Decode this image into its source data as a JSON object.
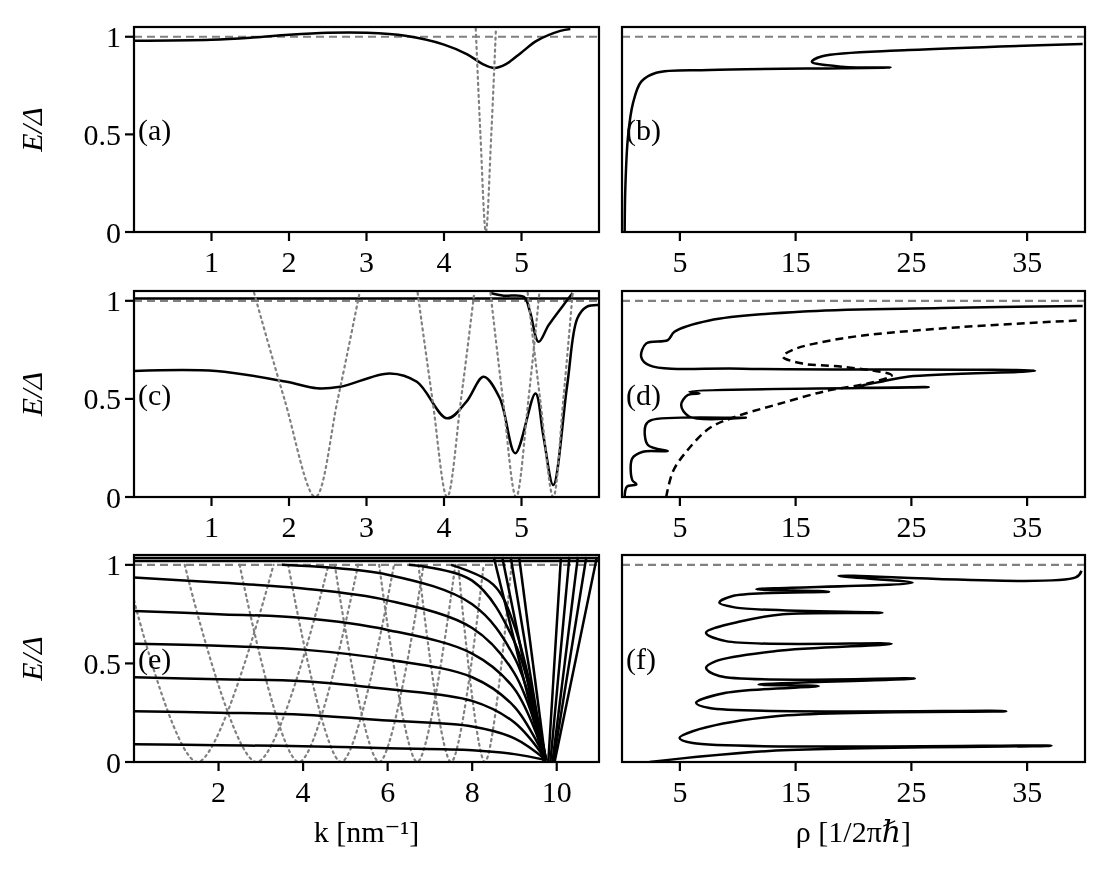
{
  "chart_data": [
    {
      "type": "line",
      "xlim": [
        0,
        6
      ],
      "ylim": [
        0,
        1.05
      ],
      "xticks": [
        1,
        2,
        3,
        4,
        5
      ],
      "yticks": [
        0,
        0.5,
        1
      ],
      "ylabel": "E/Δ",
      "annotations": [
        "(a)"
      ],
      "ref_lines": [
        {
          "axis": "y",
          "value": 1,
          "color": "#808080",
          "line_style": "dashed"
        }
      ],
      "series": [
        {
          "color": "#000000",
          "line_style": "solid",
          "x": [
            0,
            1,
            1.5,
            2,
            2.5,
            3,
            3.5,
            4,
            4.3,
            4.5,
            4.65,
            4.8,
            5,
            5.2,
            5.5,
            5.63
          ],
          "values": [
            0.98,
            0.985,
            0.995,
            1.01,
            1.02,
            1.02,
            1.005,
            0.96,
            0.91,
            0.86,
            0.84,
            0.86,
            0.92,
            0.98,
            1.03,
            1.04
          ]
        },
        {
          "color": "#808080",
          "line_style": "dotted",
          "x": [
            4.41,
            4.47,
            4.54,
            4.61,
            4.67
          ],
          "values": [
            1.04,
            0.5,
            0,
            0.5,
            1.04
          ]
        }
      ]
    },
    {
      "type": "line",
      "xlim": [
        0,
        40
      ],
      "ylim": [
        0,
        1.05
      ],
      "xticks": [
        5,
        15,
        25,
        35
      ],
      "tick_labels": "x",
      "annotations": [
        "(b)"
      ],
      "ref_lines": [
        {
          "axis": "y",
          "value": 1,
          "color": "#808080",
          "line_style": "dashed"
        }
      ],
      "series": [
        {
          "color": "#000000",
          "line_style": "solid",
          "x": [
            0.23,
            0.29,
            0.52,
            0.95,
            1.66,
            2.96,
            7.54,
            19.0,
            23.2,
            19.0,
            16.4,
            17.3,
            24.8,
            39.8
          ],
          "values": [
            0,
            0.23,
            0.49,
            0.66,
            0.77,
            0.816,
            0.83,
            0.839,
            0.842,
            0.847,
            0.872,
            0.9,
            0.932,
            0.963
          ]
        }
      ]
    },
    {
      "type": "line",
      "xlim": [
        0,
        6
      ],
      "ylim": [
        0,
        1.05
      ],
      "xticks": [
        1,
        2,
        3,
        4,
        5
      ],
      "yticks": [
        0,
        0.5,
        1
      ],
      "ylabel": "E/Δ",
      "annotations": [
        "(c)"
      ],
      "ref_lines": [
        {
          "axis": "y",
          "value": 1,
          "color": "#808080",
          "line_style": "dashed"
        }
      ],
      "series": [
        {
          "color": "#000000",
          "line_style": "solid",
          "x": [
            0,
            1.06,
            1.97,
            2.36,
            2.66,
            3.3,
            3.65,
            4.04,
            4.29,
            4.51,
            4.72,
            4.92,
            5.18,
            5.28,
            5.41,
            5.59,
            5.72,
            5.84,
            6.0
          ],
          "values": [
            0.642,
            0.642,
            0.587,
            0.554,
            0.562,
            0.63,
            0.587,
            0.401,
            0.486,
            0.613,
            0.503,
            0.223,
            0.528,
            0.316,
            0.061,
            0.571,
            0.91,
            0.969,
            0.978
          ]
        },
        {
          "color": "#000000",
          "line_style": "solid",
          "x": [
            4.6,
            4.77,
            5.03,
            5.11,
            5.22,
            5.35,
            5.54,
            5.66
          ],
          "values": [
            1.04,
            1.026,
            1.02,
            0.944,
            0.791,
            0.876,
            0.978,
            1.04
          ]
        },
        {
          "color": "#000000",
          "line_style": "solid",
          "x": [
            0,
            6
          ],
          "values": [
            1.012,
            1.012
          ]
        },
        {
          "color": "#808080",
          "line_style": "dotted",
          "x": [
            1.55,
            1.94,
            2.34,
            2.63,
            2.91
          ],
          "values": [
            1.04,
            0.5,
            0,
            0.5,
            1.04
          ]
        },
        {
          "color": "#808080",
          "line_style": "dotted",
          "x": [
            3.66,
            3.85,
            4.04,
            4.22,
            4.39
          ],
          "values": [
            1.04,
            0.5,
            0,
            0.5,
            1.04
          ]
        },
        {
          "color": "#808080",
          "line_style": "dotted",
          "x": [
            4.6,
            4.76,
            4.93,
            5.09,
            5.23
          ],
          "values": [
            1.04,
            0.5,
            0,
            0.5,
            1.04
          ]
        },
        {
          "color": "#808080",
          "line_style": "dotted",
          "x": [
            5.08,
            5.24,
            5.41,
            5.54,
            5.66
          ],
          "values": [
            1.04,
            0.5,
            0,
            0.5,
            1.04
          ]
        }
      ]
    },
    {
      "type": "line",
      "xlim": [
        0,
        40
      ],
      "ylim": [
        0,
        1.05
      ],
      "xticks": [
        5,
        15,
        25,
        35
      ],
      "tick_labels": "x",
      "annotations": [
        "(d)"
      ],
      "ref_lines": [
        {
          "axis": "y",
          "value": 1,
          "color": "#808080",
          "line_style": "dashed"
        }
      ],
      "series": [
        {
          "color": "#000000",
          "line_style": "solid",
          "x": [
            0.23,
            0.43,
            1.24,
            0.89,
            0.89,
            1.81,
            3.96,
            2.24,
            2.04,
            2.53,
            10.7,
            5.83,
            5.11,
            5.68,
            6.69,
            5.83,
            26.5,
            20.5,
            22.5,
            24.8,
            35.7,
            10.4,
            2.38,
            1.66,
            2.1,
            3.96,
            4.53,
            7.54,
            16.1,
            27.6,
            39.8
          ],
          "values": [
            0,
            0.053,
            0.064,
            0.086,
            0.197,
            0.231,
            0.234,
            0.265,
            0.366,
            0.392,
            0.404,
            0.409,
            0.469,
            0.52,
            0.528,
            0.537,
            0.56,
            0.563,
            0.589,
            0.614,
            0.643,
            0.654,
            0.671,
            0.714,
            0.783,
            0.8,
            0.842,
            0.9,
            0.947,
            0.963,
            0.974
          ]
        },
        {
          "color": "#000000",
          "line_style": "dashed",
          "x": [
            3.82,
            4.4,
            5.54,
            7.54,
            9.84,
            13.3,
            17.6,
            21.3,
            23.3,
            19.0,
            15.6,
            13.9,
            14.7,
            19.0,
            27.6,
            39.7
          ],
          "values": [
            0,
            0.13,
            0.23,
            0.35,
            0.41,
            0.47,
            0.54,
            0.58,
            0.62,
            0.664,
            0.68,
            0.715,
            0.749,
            0.808,
            0.859,
            0.901
          ]
        }
      ]
    },
    {
      "type": "line",
      "xlim": [
        0,
        11
      ],
      "ylim": [
        0,
        1.05
      ],
      "xticks": [
        2,
        4,
        6,
        8,
        10
      ],
      "yticks": [
        0,
        0.5,
        1
      ],
      "ylabel": "E/Δ",
      "xlabel": "k [nm⁻¹]",
      "annotations": [
        "(e)"
      ],
      "ref_lines": [
        {
          "axis": "y",
          "value": 1,
          "color": "#808080",
          "line_style": "dashed"
        }
      ],
      "series": [
        {
          "color": "#808080",
          "line_style": "dotted",
          "x": [
            0,
            1.5,
            3.3
          ],
          "values": [
            0.82,
            0,
            1.0
          ]
        },
        {
          "color": "#808080",
          "line_style": "dotted",
          "x": [
            1.2,
            2.9,
            4.6
          ],
          "values": [
            1.0,
            0,
            1.0
          ]
        },
        {
          "color": "#808080",
          "line_style": "dotted",
          "x": [
            2.5,
            3.9,
            5.3
          ],
          "values": [
            1.0,
            0,
            1.0
          ]
        },
        {
          "color": "#808080",
          "line_style": "dotted",
          "x": [
            3.65,
            4.9,
            6.15
          ],
          "values": [
            1.0,
            0,
            1.0
          ]
        },
        {
          "color": "#808080",
          "line_style": "dotted",
          "x": [
            4.75,
            5.8,
            6.85
          ],
          "values": [
            1.0,
            0,
            1.0
          ]
        },
        {
          "color": "#808080",
          "line_style": "dotted",
          "x": [
            5.8,
            6.7,
            7.6
          ],
          "values": [
            1.0,
            0,
            1.0
          ]
        },
        {
          "color": "#808080",
          "line_style": "dotted",
          "x": [
            6.73,
            7.5,
            8.27
          ],
          "values": [
            1.0,
            0,
            1.0
          ]
        },
        {
          "color": "#808080",
          "line_style": "dotted",
          "x": [
            7.67,
            8.3,
            8.93
          ],
          "values": [
            1.0,
            0,
            1.0
          ]
        },
        {
          "color": "#000000",
          "line_style": "solid",
          "x": [
            0,
            2,
            4,
            6,
            8,
            9,
            9.75
          ],
          "values": [
            0.936,
            0.91,
            0.88,
            0.82,
            0.68,
            0.45,
            0.01
          ]
        },
        {
          "color": "#000000",
          "line_style": "solid",
          "x": [
            0,
            2,
            4,
            6,
            8,
            9,
            9.75
          ],
          "values": [
            0.766,
            0.75,
            0.73,
            0.67,
            0.55,
            0.37,
            0.01
          ]
        },
        {
          "color": "#000000",
          "line_style": "solid",
          "x": [
            0,
            2,
            4,
            6,
            8,
            9,
            9.75
          ],
          "values": [
            0.6,
            0.59,
            0.57,
            0.52,
            0.43,
            0.28,
            0.01
          ]
        },
        {
          "color": "#000000",
          "line_style": "solid",
          "x": [
            0,
            2,
            4,
            6,
            8,
            9,
            9.75
          ],
          "values": [
            0.43,
            0.42,
            0.41,
            0.37,
            0.31,
            0.2,
            0.01
          ]
        },
        {
          "color": "#000000",
          "line_style": "solid",
          "x": [
            0,
            2,
            4,
            6,
            8,
            9,
            9.75
          ],
          "values": [
            0.257,
            0.25,
            0.24,
            0.21,
            0.18,
            0.12,
            0.01
          ]
        },
        {
          "color": "#000000",
          "line_style": "solid",
          "x": [
            0,
            2,
            4,
            6,
            8,
            9,
            9.75
          ],
          "values": [
            0.09,
            0.085,
            0.08,
            0.07,
            0.06,
            0.04,
            0.01
          ]
        },
        {
          "color": "#000000",
          "line_style": "solid",
          "x": [
            3.5,
            6,
            8,
            9,
            9.75
          ],
          "values": [
            1.0,
            0.95,
            0.8,
            0.53,
            0.01
          ]
        },
        {
          "color": "#000000",
          "line_style": "solid",
          "x": [
            6.5,
            8,
            9,
            9.75
          ],
          "values": [
            1.0,
            0.92,
            0.61,
            0.01
          ]
        },
        {
          "color": "#000000",
          "line_style": "solid",
          "x": [
            7.5,
            8.5,
            9,
            9.75
          ],
          "values": [
            1.0,
            0.9,
            0.69,
            0.01
          ]
        },
        {
          "color": "#000000",
          "line_style": "solid",
          "x": [
            8.51,
            9.7
          ],
          "values": [
            1.04,
            0
          ]
        },
        {
          "color": "#000000",
          "line_style": "solid",
          "x": [
            8.71,
            9.7
          ],
          "values": [
            1.04,
            0
          ]
        },
        {
          "color": "#000000",
          "line_style": "solid",
          "x": [
            8.91,
            9.72
          ],
          "values": [
            1.04,
            0
          ]
        },
        {
          "color": "#000000",
          "line_style": "solid",
          "x": [
            9.11,
            9.74
          ],
          "values": [
            1.04,
            0
          ]
        },
        {
          "color": "#000000",
          "line_style": "solid",
          "x": [
            9.8,
            10.1
          ],
          "values": [
            0,
            1.04
          ]
        },
        {
          "color": "#000000",
          "line_style": "solid",
          "x": [
            9.85,
            10.3
          ],
          "values": [
            0,
            1.04
          ]
        },
        {
          "color": "#000000",
          "line_style": "solid",
          "x": [
            9.9,
            10.5
          ],
          "values": [
            0,
            1.04
          ]
        },
        {
          "color": "#000000",
          "line_style": "solid",
          "x": [
            9.92,
            10.7
          ],
          "values": [
            0,
            1.04
          ]
        },
        {
          "color": "#000000",
          "line_style": "solid",
          "x": [
            9.95,
            10.95
          ],
          "values": [
            0,
            1.04
          ]
        },
        {
          "color": "#000000",
          "line_style": "solid",
          "x": [
            0,
            11
          ],
          "values": [
            1.02,
            1.02
          ]
        },
        {
          "color": "#000000",
          "line_style": "solid",
          "x": [
            0,
            11
          ],
          "values": [
            1.035,
            1.035
          ]
        }
      ]
    },
    {
      "type": "line",
      "xlim": [
        0,
        40
      ],
      "ylim": [
        0,
        1.05
      ],
      "xticks": [
        5,
        15,
        25,
        35
      ],
      "tick_labels": "x",
      "xlabel": "ρ [1/2πℏ]",
      "annotations": [
        "(f)"
      ],
      "ref_lines": [
        {
          "axis": "y",
          "value": 1,
          "color": "#808080",
          "line_style": "dashed"
        }
      ],
      "series": [
        {
          "color": "#000000",
          "line_style": "solid",
          "x": [
            2.38,
            13.3,
            37.1,
            6.11,
            4.97,
            6.11,
            13.3,
            33.2,
            7.55,
            6.4,
            8.98,
            17.0,
            11.8,
            25.3,
            8.4,
            7.26,
            8.12,
            13.3,
            23.3,
            8.98,
            7.26,
            10.4,
            13.9,
            22.5,
            9.84,
            8.41,
            9.56,
            17.9,
            11.6,
            25.1,
            18.7,
            39.2,
            39.7
          ],
          "values": [
            0,
            0.058,
            0.083,
            0.096,
            0.122,
            0.156,
            0.232,
            0.258,
            0.274,
            0.3,
            0.351,
            0.385,
            0.393,
            0.424,
            0.436,
            0.478,
            0.512,
            0.563,
            0.6,
            0.613,
            0.656,
            0.715,
            0.749,
            0.757,
            0.783,
            0.808,
            0.842,
            0.864,
            0.876,
            0.91,
            0.944,
            0.936,
            0.97
          ]
        }
      ]
    }
  ]
}
